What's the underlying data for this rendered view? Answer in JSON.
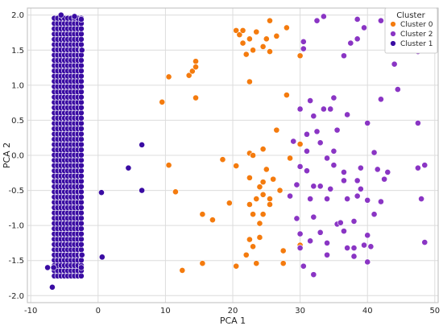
{
  "chart_data": {
    "type": "scatter",
    "title": "",
    "xlabel": "PCA 1",
    "ylabel": "PCA 2",
    "xlim": [
      -10.5,
      50.5
    ],
    "ylim": [
      -2.1,
      2.1
    ],
    "xticks": [
      -10,
      0,
      10,
      20,
      30,
      40,
      50
    ],
    "yticks": [
      -2.0,
      -1.5,
      -1.0,
      -0.5,
      0.0,
      0.5,
      1.0,
      1.5,
      2.0
    ],
    "grid": true,
    "legend": {
      "title": "Cluster",
      "placement": "top-right"
    },
    "series": [
      {
        "name": "Cluster 0",
        "color": "#f47b0e",
        "points": [
          [
            9.5,
            0.76
          ],
          [
            10.5,
            1.12
          ],
          [
            10.5,
            -0.14
          ],
          [
            11.5,
            -0.52
          ],
          [
            12.5,
            -1.64
          ],
          [
            13.5,
            1.14
          ],
          [
            14.0,
            1.2
          ],
          [
            14.5,
            1.34
          ],
          [
            14.5,
            1.26
          ],
          [
            14.5,
            0.82
          ],
          [
            15.5,
            -0.84
          ],
          [
            15.5,
            -1.54
          ],
          [
            17.0,
            -0.92
          ],
          [
            18.5,
            -0.06
          ],
          [
            19.5,
            -0.68
          ],
          [
            20.5,
            1.78
          ],
          [
            20.5,
            -1.58
          ],
          [
            20.5,
            -0.15
          ],
          [
            21.0,
            1.72
          ],
          [
            21.5,
            1.78
          ],
          [
            21.5,
            1.6
          ],
          [
            22.0,
            1.44
          ],
          [
            22.0,
            -1.42
          ],
          [
            22.5,
            1.66
          ],
          [
            22.5,
            1.05
          ],
          [
            22.5,
            0.03
          ],
          [
            22.5,
            -0.7
          ],
          [
            22.5,
            -1.2
          ],
          [
            23.0,
            1.5
          ],
          [
            23.0,
            -1.3
          ],
          [
            23.0,
            -0.84
          ],
          [
            23.5,
            1.76
          ],
          [
            23.5,
            -1.54
          ],
          [
            23.5,
            -0.62
          ],
          [
            24.0,
            -0.45
          ],
          [
            24.0,
            -0.97
          ],
          [
            24.0,
            -1.17
          ],
          [
            24.5,
            1.55
          ],
          [
            24.5,
            -0.38
          ],
          [
            24.5,
            -0.56
          ],
          [
            24.5,
            -0.84
          ],
          [
            24.5,
            0.09
          ],
          [
            25.0,
            1.66
          ],
          [
            25.0,
            -0.2
          ],
          [
            25.5,
            1.92
          ],
          [
            25.5,
            -0.62
          ],
          [
            25.5,
            1.48
          ],
          [
            26.0,
            -0.34
          ],
          [
            26.5,
            1.7
          ],
          [
            26.5,
            0.36
          ],
          [
            27.0,
            -0.5
          ],
          [
            27.5,
            -1.36
          ],
          [
            27.5,
            -1.54
          ],
          [
            28.0,
            0.86
          ],
          [
            28.0,
            1.82
          ],
          [
            28.5,
            -0.04
          ],
          [
            30.0,
            -1.28
          ],
          [
            30.0,
            1.42
          ],
          [
            30.0,
            0.16
          ],
          [
            22.5,
            -0.32
          ],
          [
            23.0,
            0.0
          ],
          [
            25.5,
            -0.7
          ]
        ]
      },
      {
        "name": "Cluster 2",
        "color": "#8a35c4",
        "points": [
          [
            28.5,
            -0.58
          ],
          [
            29.0,
            0.2
          ],
          [
            29.5,
            -0.42
          ],
          [
            29.5,
            -0.9
          ],
          [
            30.0,
            -1.12
          ],
          [
            30.0,
            -1.32
          ],
          [
            30.0,
            0.66
          ],
          [
            30.0,
            -0.16
          ],
          [
            30.5,
            -1.58
          ],
          [
            30.5,
            1.62
          ],
          [
            30.5,
            1.52
          ],
          [
            31.0,
            0.3
          ],
          [
            31.0,
            -0.22
          ],
          [
            31.0,
            0.06
          ],
          [
            31.5,
            -0.62
          ],
          [
            31.5,
            0.78
          ],
          [
            31.5,
            -1.22
          ],
          [
            32.0,
            0.56
          ],
          [
            32.0,
            -1.7
          ],
          [
            32.0,
            -0.44
          ],
          [
            32.0,
            -0.88
          ],
          [
            32.5,
            1.92
          ],
          [
            32.5,
            0.34
          ],
          [
            33.0,
            -0.44
          ],
          [
            33.0,
            -1.1
          ],
          [
            33.0,
            0.18
          ],
          [
            33.5,
            1.98
          ],
          [
            33.5,
            0.66
          ],
          [
            34.0,
            -0.04
          ],
          [
            34.0,
            -0.62
          ],
          [
            34.0,
            -1.42
          ],
          [
            34.0,
            -1.25
          ],
          [
            34.5,
            -0.48
          ],
          [
            34.5,
            0.66
          ],
          [
            35.0,
            -0.14
          ],
          [
            35.0,
            0.06
          ],
          [
            35.0,
            0.82
          ],
          [
            35.5,
            -0.98
          ],
          [
            35.5,
            0.36
          ],
          [
            36.0,
            -0.96
          ],
          [
            36.5,
            -0.24
          ],
          [
            36.5,
            1.42
          ],
          [
            36.5,
            -0.36
          ],
          [
            36.5,
            -1.08
          ],
          [
            37.0,
            0.58
          ],
          [
            37.0,
            -0.62
          ],
          [
            37.0,
            -1.32
          ],
          [
            37.5,
            1.6
          ],
          [
            38.0,
            -0.94
          ],
          [
            38.0,
            -1.44
          ],
          [
            38.0,
            -1.32
          ],
          [
            38.5,
            1.66
          ],
          [
            38.5,
            1.94
          ],
          [
            38.5,
            -0.58
          ],
          [
            38.5,
            -0.36
          ],
          [
            39.0,
            -0.18
          ],
          [
            39.0,
            -0.48
          ],
          [
            39.5,
            1.82
          ],
          [
            39.5,
            -1.28
          ],
          [
            40.0,
            -1.14
          ],
          [
            40.0,
            0.46
          ],
          [
            40.0,
            -0.64
          ],
          [
            40.0,
            -1.52
          ],
          [
            40.5,
            -1.3
          ],
          [
            41.0,
            0.04
          ],
          [
            41.0,
            -0.84
          ],
          [
            41.5,
            -0.2
          ],
          [
            42.0,
            1.92
          ],
          [
            42.0,
            0.8
          ],
          [
            42.0,
            -0.66
          ],
          [
            42.5,
            -0.34
          ],
          [
            43.0,
            -0.24
          ],
          [
            43.5,
            1.88
          ],
          [
            44.0,
            1.3
          ],
          [
            44.5,
            0.94
          ],
          [
            47.0,
            1.84
          ],
          [
            47.5,
            1.48
          ],
          [
            47.5,
            0.46
          ],
          [
            48.0,
            -0.62
          ],
          [
            48.5,
            -0.14
          ],
          [
            48.5,
            -1.24
          ],
          [
            47.5,
            -0.18
          ],
          [
            46.5,
            1.9
          ],
          [
            45.0,
            1.6
          ]
        ]
      },
      {
        "name": "Cluster 1",
        "color": "#3a0ca3",
        "points": [
          [
            -7.5,
            -1.6
          ],
          [
            -6.8,
            -1.88
          ],
          [
            -6.6,
            -1.6
          ],
          [
            -5.5,
            2.0
          ],
          [
            -3.5,
            1.98
          ],
          [
            -2.5,
            1.94
          ],
          [
            -2.4,
            1.5
          ],
          [
            -2.5,
            -1.6
          ],
          [
            -2.4,
            -1.42
          ],
          [
            0.5,
            -0.53
          ],
          [
            0.6,
            -1.45
          ],
          [
            4.5,
            -0.18
          ],
          [
            6.5,
            -0.5
          ],
          [
            6.5,
            0.15
          ]
        ]
      }
    ],
    "dense_band": {
      "series": "Cluster 1",
      "x_values": [
        -6.5,
        -6.0,
        -5.5,
        -5.0,
        -4.5,
        -4.0,
        -3.5,
        -3.0,
        -2.5
      ],
      "y_range": [
        -1.72,
        1.98
      ],
      "y_step": 0.075
    }
  }
}
